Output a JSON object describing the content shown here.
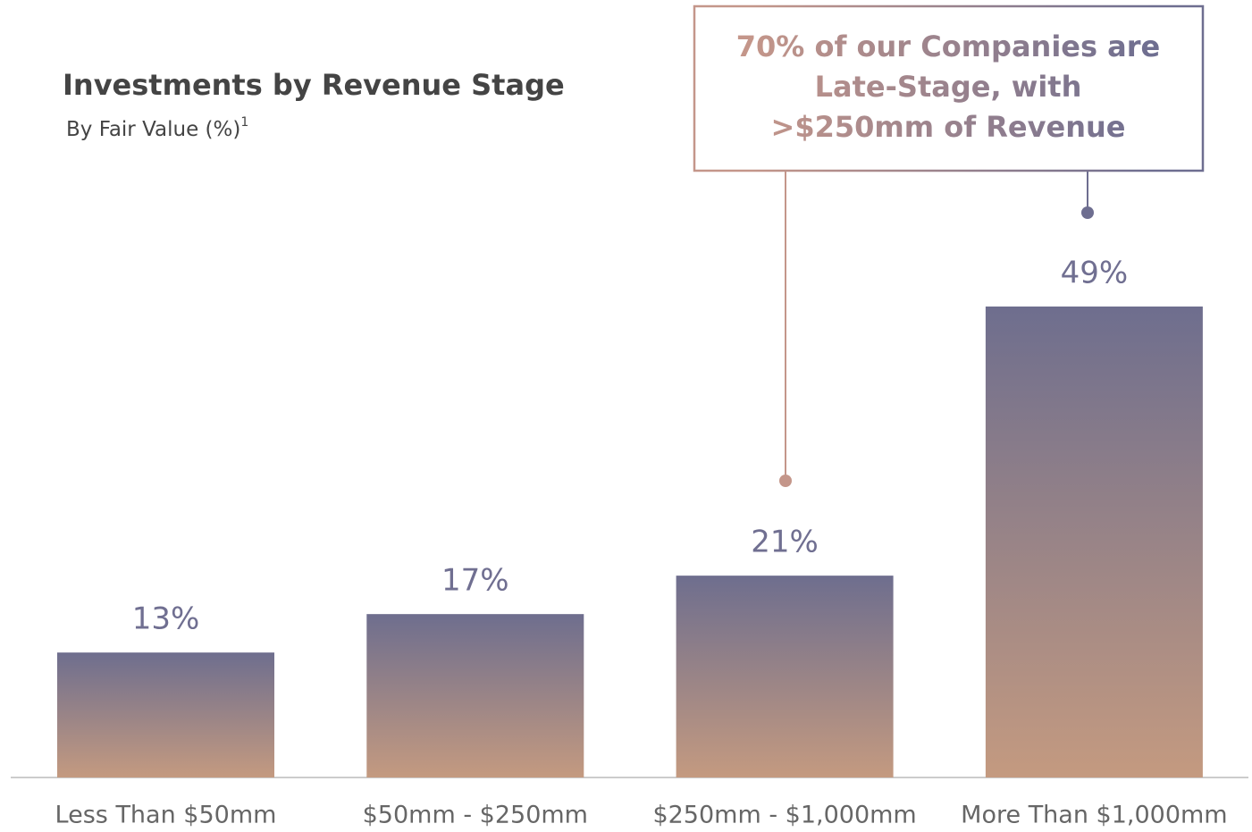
{
  "chart_data": {
    "type": "bar",
    "title": "Investments by Revenue Stage",
    "subtitle": "By Fair Value (%)",
    "subtitle_footnote": "1",
    "categories": [
      "Less Than $50mm",
      "$50mm - $250mm",
      "$250mm - $1,000mm",
      "More Than $1,000mm"
    ],
    "values": [
      13,
      17,
      21,
      49
    ],
    "value_labels": [
      "13%",
      "17%",
      "21%",
      "49%"
    ],
    "color": [
      "#6e6e8e",
      "#c49a80"
    ],
    "annotation": [
      "70% of our Companies are",
      "Late-Stage, with",
      ">$250mm of Revenue"
    ]
  }
}
